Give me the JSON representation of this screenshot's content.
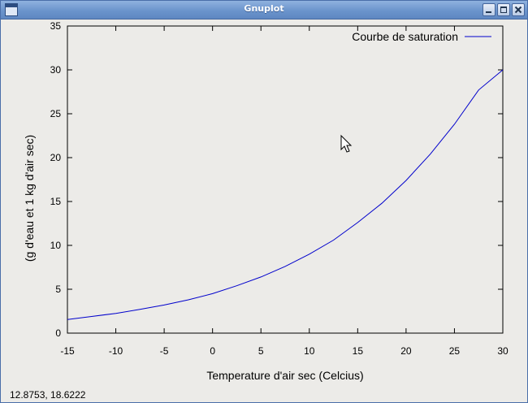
{
  "window": {
    "title": "Gnuplot",
    "icon": "app-window-icon",
    "buttons": [
      {
        "name": "minimize-icon"
      },
      {
        "name": "maximize-icon"
      },
      {
        "name": "close-icon"
      }
    ],
    "titlebar_color": "#6b94cc"
  },
  "status_bar": {
    "coordinates": "12.8753,  18.6222"
  },
  "chart_data": {
    "type": "line",
    "title": "",
    "xlabel": "Temperature d'air sec (Celcius)",
    "ylabel": "(g d'eau et 1 kg d'air sec)",
    "xlim": [
      -15,
      30
    ],
    "ylim": [
      0,
      35
    ],
    "xticks": [
      -15,
      -10,
      -5,
      0,
      5,
      10,
      15,
      20,
      25,
      30
    ],
    "yticks": [
      0,
      5,
      10,
      15,
      20,
      25,
      30,
      35
    ],
    "grid": false,
    "legend_position": "top-right",
    "series": [
      {
        "name": "Courbe de saturation",
        "color": "#0000cc",
        "x": [
          -15,
          -12.5,
          -10,
          -7.5,
          -5,
          -2.5,
          0,
          2.5,
          5,
          7.5,
          10,
          12.5,
          15,
          17.5,
          20,
          22.5,
          25,
          27.5,
          30
        ],
        "y": [
          1.55,
          1.9,
          2.25,
          2.7,
          3.2,
          3.8,
          4.5,
          5.4,
          6.4,
          7.6,
          9.0,
          10.6,
          12.6,
          14.8,
          17.4,
          20.4,
          23.8,
          27.7,
          30.0
        ]
      }
    ]
  }
}
